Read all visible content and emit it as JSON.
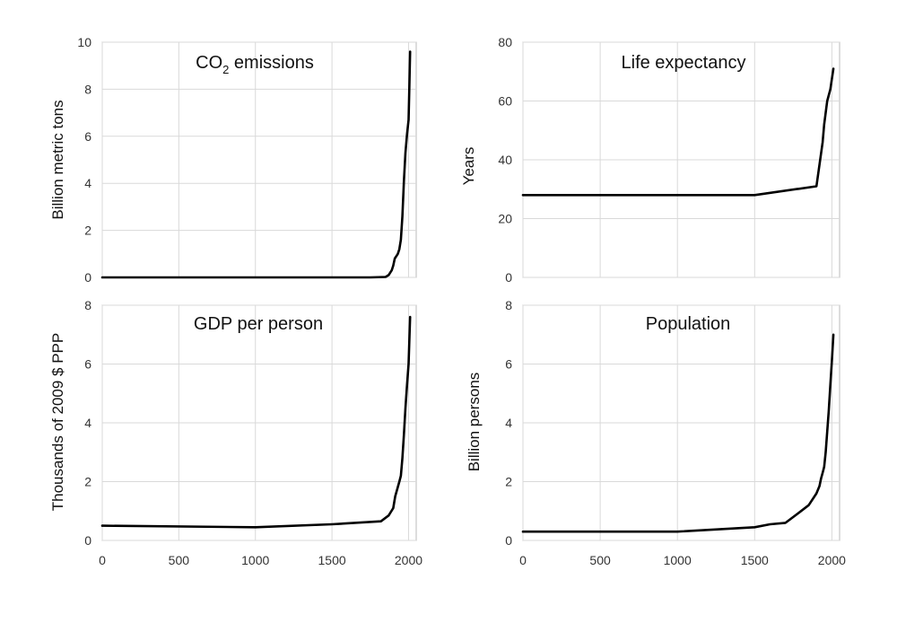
{
  "chart_data": [
    {
      "type": "line",
      "title": "CO",
      "title_sub": "2",
      "title_rest": " emissions",
      "ylabel": "Billion metric tons",
      "xlim": [
        0,
        2050
      ],
      "ylim": [
        0,
        10
      ],
      "xticks": [],
      "yticks": [
        0,
        2,
        4,
        6,
        8,
        10
      ],
      "grid": true,
      "x": [
        0,
        1750,
        1850,
        1870,
        1890,
        1900,
        1910,
        1920,
        1930,
        1940,
        1950,
        1960,
        1970,
        1980,
        1990,
        2000,
        2005,
        2010
      ],
      "y": [
        0,
        0,
        0.02,
        0.1,
        0.3,
        0.5,
        0.8,
        0.9,
        1.0,
        1.2,
        1.6,
        2.6,
        4.1,
        5.3,
        6.1,
        6.7,
        8.0,
        9.6
      ]
    },
    {
      "type": "line",
      "title": "Life expectancy",
      "ylabel": "Years",
      "xlim": [
        0,
        2050
      ],
      "ylim": [
        0,
        80
      ],
      "xticks": [],
      "yticks": [
        0,
        20,
        40,
        60,
        80
      ],
      "grid": true,
      "x": [
        0,
        1000,
        1500,
        1900,
        1940,
        1950,
        1960,
        1970,
        1990,
        2010
      ],
      "y": [
        28,
        28,
        28,
        31,
        46,
        52,
        56,
        60,
        64,
        71
      ]
    },
    {
      "type": "line",
      "title": "GDP per person",
      "ylabel": "Thousands of 2009 $ PPP",
      "xlim": [
        0,
        2050
      ],
      "ylim": [
        0,
        8
      ],
      "xticks": [
        0,
        500,
        1000,
        1500,
        2000
      ],
      "yticks": [
        0,
        2,
        4,
        6,
        8
      ],
      "grid": true,
      "x": [
        0,
        1000,
        1500,
        1820,
        1870,
        1900,
        1913,
        1940,
        1950,
        1960,
        1970,
        1980,
        1990,
        2000,
        2010
      ],
      "y": [
        0.5,
        0.45,
        0.55,
        0.65,
        0.85,
        1.1,
        1.5,
        2.0,
        2.2,
        2.8,
        3.6,
        4.5,
        5.3,
        6.0,
        7.6
      ]
    },
    {
      "type": "line",
      "title": "Population",
      "ylabel": "Billion persons",
      "xlim": [
        0,
        2050
      ],
      "ylim": [
        0,
        8
      ],
      "xticks": [
        0,
        500,
        1000,
        1500,
        2000
      ],
      "yticks": [
        0,
        2,
        4,
        6,
        8
      ],
      "grid": true,
      "x": [
        0,
        1000,
        1500,
        1600,
        1700,
        1800,
        1850,
        1900,
        1920,
        1930,
        1940,
        1950,
        1960,
        1970,
        1980,
        1990,
        2000,
        2010
      ],
      "y": [
        0.3,
        0.3,
        0.45,
        0.55,
        0.6,
        1.0,
        1.2,
        1.6,
        1.85,
        2.1,
        2.3,
        2.5,
        3.0,
        3.7,
        4.4,
        5.3,
        6.1,
        7.0
      ]
    }
  ]
}
